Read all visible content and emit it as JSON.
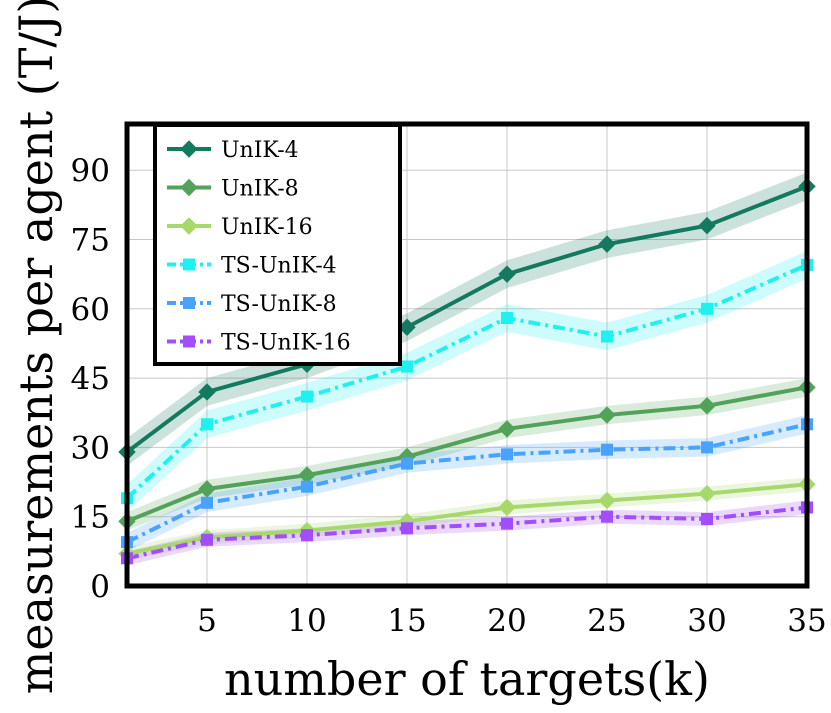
{
  "chart_data": {
    "type": "line",
    "xlabel": "number of targets(k)",
    "ylabel": "measurements per agent (T/J)",
    "x": [
      1,
      5,
      10,
      15,
      20,
      25,
      30,
      35
    ],
    "xlim": [
      1,
      35
    ],
    "ylim": [
      0,
      100
    ],
    "xticks": [
      5,
      10,
      15,
      20,
      25,
      30,
      35
    ],
    "yticks": [
      0,
      15,
      30,
      45,
      60,
      75,
      90
    ],
    "grid": true,
    "legend_position": "top-left",
    "series": [
      {
        "name": "UnIK-4",
        "color": "#137a5f",
        "marker": "diamond",
        "dash": "solid",
        "values": [
          29,
          42,
          48,
          56,
          67.5,
          74,
          78,
          86.5
        ],
        "band": 3
      },
      {
        "name": "UnIK-8",
        "color": "#52a25a",
        "marker": "diamond",
        "dash": "solid",
        "values": [
          14,
          21,
          24,
          28,
          34,
          37,
          39,
          43
        ],
        "band": 2
      },
      {
        "name": "UnIK-16",
        "color": "#a6d86a",
        "marker": "diamond",
        "dash": "solid",
        "values": [
          7,
          10.5,
          12,
          14,
          17,
          18.5,
          20,
          22
        ],
        "band": 1.5
      },
      {
        "name": "TS-UnIK-4",
        "color": "#1ff0f0",
        "marker": "square",
        "dash": "dashdot",
        "values": [
          19,
          35,
          41,
          47.5,
          58,
          54,
          60,
          69.5
        ],
        "band": 3
      },
      {
        "name": "TS-UnIK-8",
        "color": "#4aa2ff",
        "marker": "square",
        "dash": "dashdot",
        "values": [
          9.5,
          18,
          21.5,
          26.5,
          28.5,
          29.5,
          30,
          35
        ],
        "band": 2
      },
      {
        "name": "TS-UnIK-16",
        "color": "#a24dff",
        "marker": "square",
        "dash": "dashdot",
        "values": [
          6,
          10,
          11,
          12.5,
          13.5,
          15,
          14.5,
          17
        ],
        "band": 1.5
      }
    ]
  }
}
